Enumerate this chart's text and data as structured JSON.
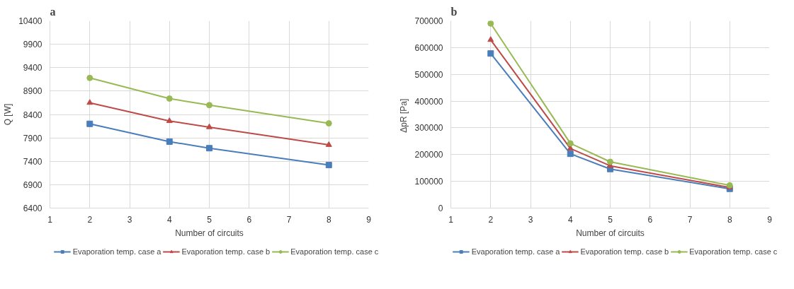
{
  "chart_data": [
    {
      "type": "line",
      "title": "a",
      "xlabel": "Number of circuits",
      "ylabel": "Q [W]",
      "x": [
        2,
        4,
        5,
        8
      ],
      "xlim": [
        1,
        9
      ],
      "xticks": [
        1,
        2,
        3,
        4,
        5,
        6,
        7,
        8,
        9
      ],
      "ylim": [
        6400,
        10400
      ],
      "yticks": [
        6400,
        6900,
        7400,
        7900,
        8400,
        8900,
        9400,
        9900,
        10400
      ],
      "grid": true,
      "legend": "bottom",
      "series": [
        {
          "name": "Evaporation temp. case a",
          "color": "#4a7ebb",
          "marker": "square",
          "values": [
            8200,
            7820,
            7680,
            7320
          ]
        },
        {
          "name": "Evaporation temp. case b",
          "color": "#be4b48",
          "marker": "triangle",
          "values": [
            8650,
            8260,
            8130,
            7750
          ]
        },
        {
          "name": "Evaporation temp. case c",
          "color": "#98b954",
          "marker": "circle",
          "values": [
            9180,
            8740,
            8600,
            8210
          ]
        }
      ]
    },
    {
      "type": "line",
      "title": "b",
      "xlabel": "Number of circuits",
      "ylabel": "ΔpR  [Pa]",
      "x": [
        2,
        4,
        5,
        8
      ],
      "xlim": [
        1,
        9
      ],
      "xticks": [
        1,
        2,
        3,
        4,
        5,
        6,
        7,
        8,
        9
      ],
      "ylim": [
        0,
        700000
      ],
      "yticks": [
        0,
        100000,
        200000,
        300000,
        400000,
        500000,
        600000,
        700000
      ],
      "grid": true,
      "legend": "bottom",
      "series": [
        {
          "name": "Evaporation temp. case a",
          "color": "#4a7ebb",
          "marker": "square",
          "values": [
            578000,
            203000,
            146000,
            72000
          ]
        },
        {
          "name": "Evaporation temp. case b",
          "color": "#be4b48",
          "marker": "triangle",
          "values": [
            629000,
            223000,
            158000,
            77000
          ]
        },
        {
          "name": "Evaporation temp. case c",
          "color": "#98b954",
          "marker": "circle",
          "values": [
            690000,
            242000,
            173000,
            85000
          ]
        }
      ]
    }
  ]
}
